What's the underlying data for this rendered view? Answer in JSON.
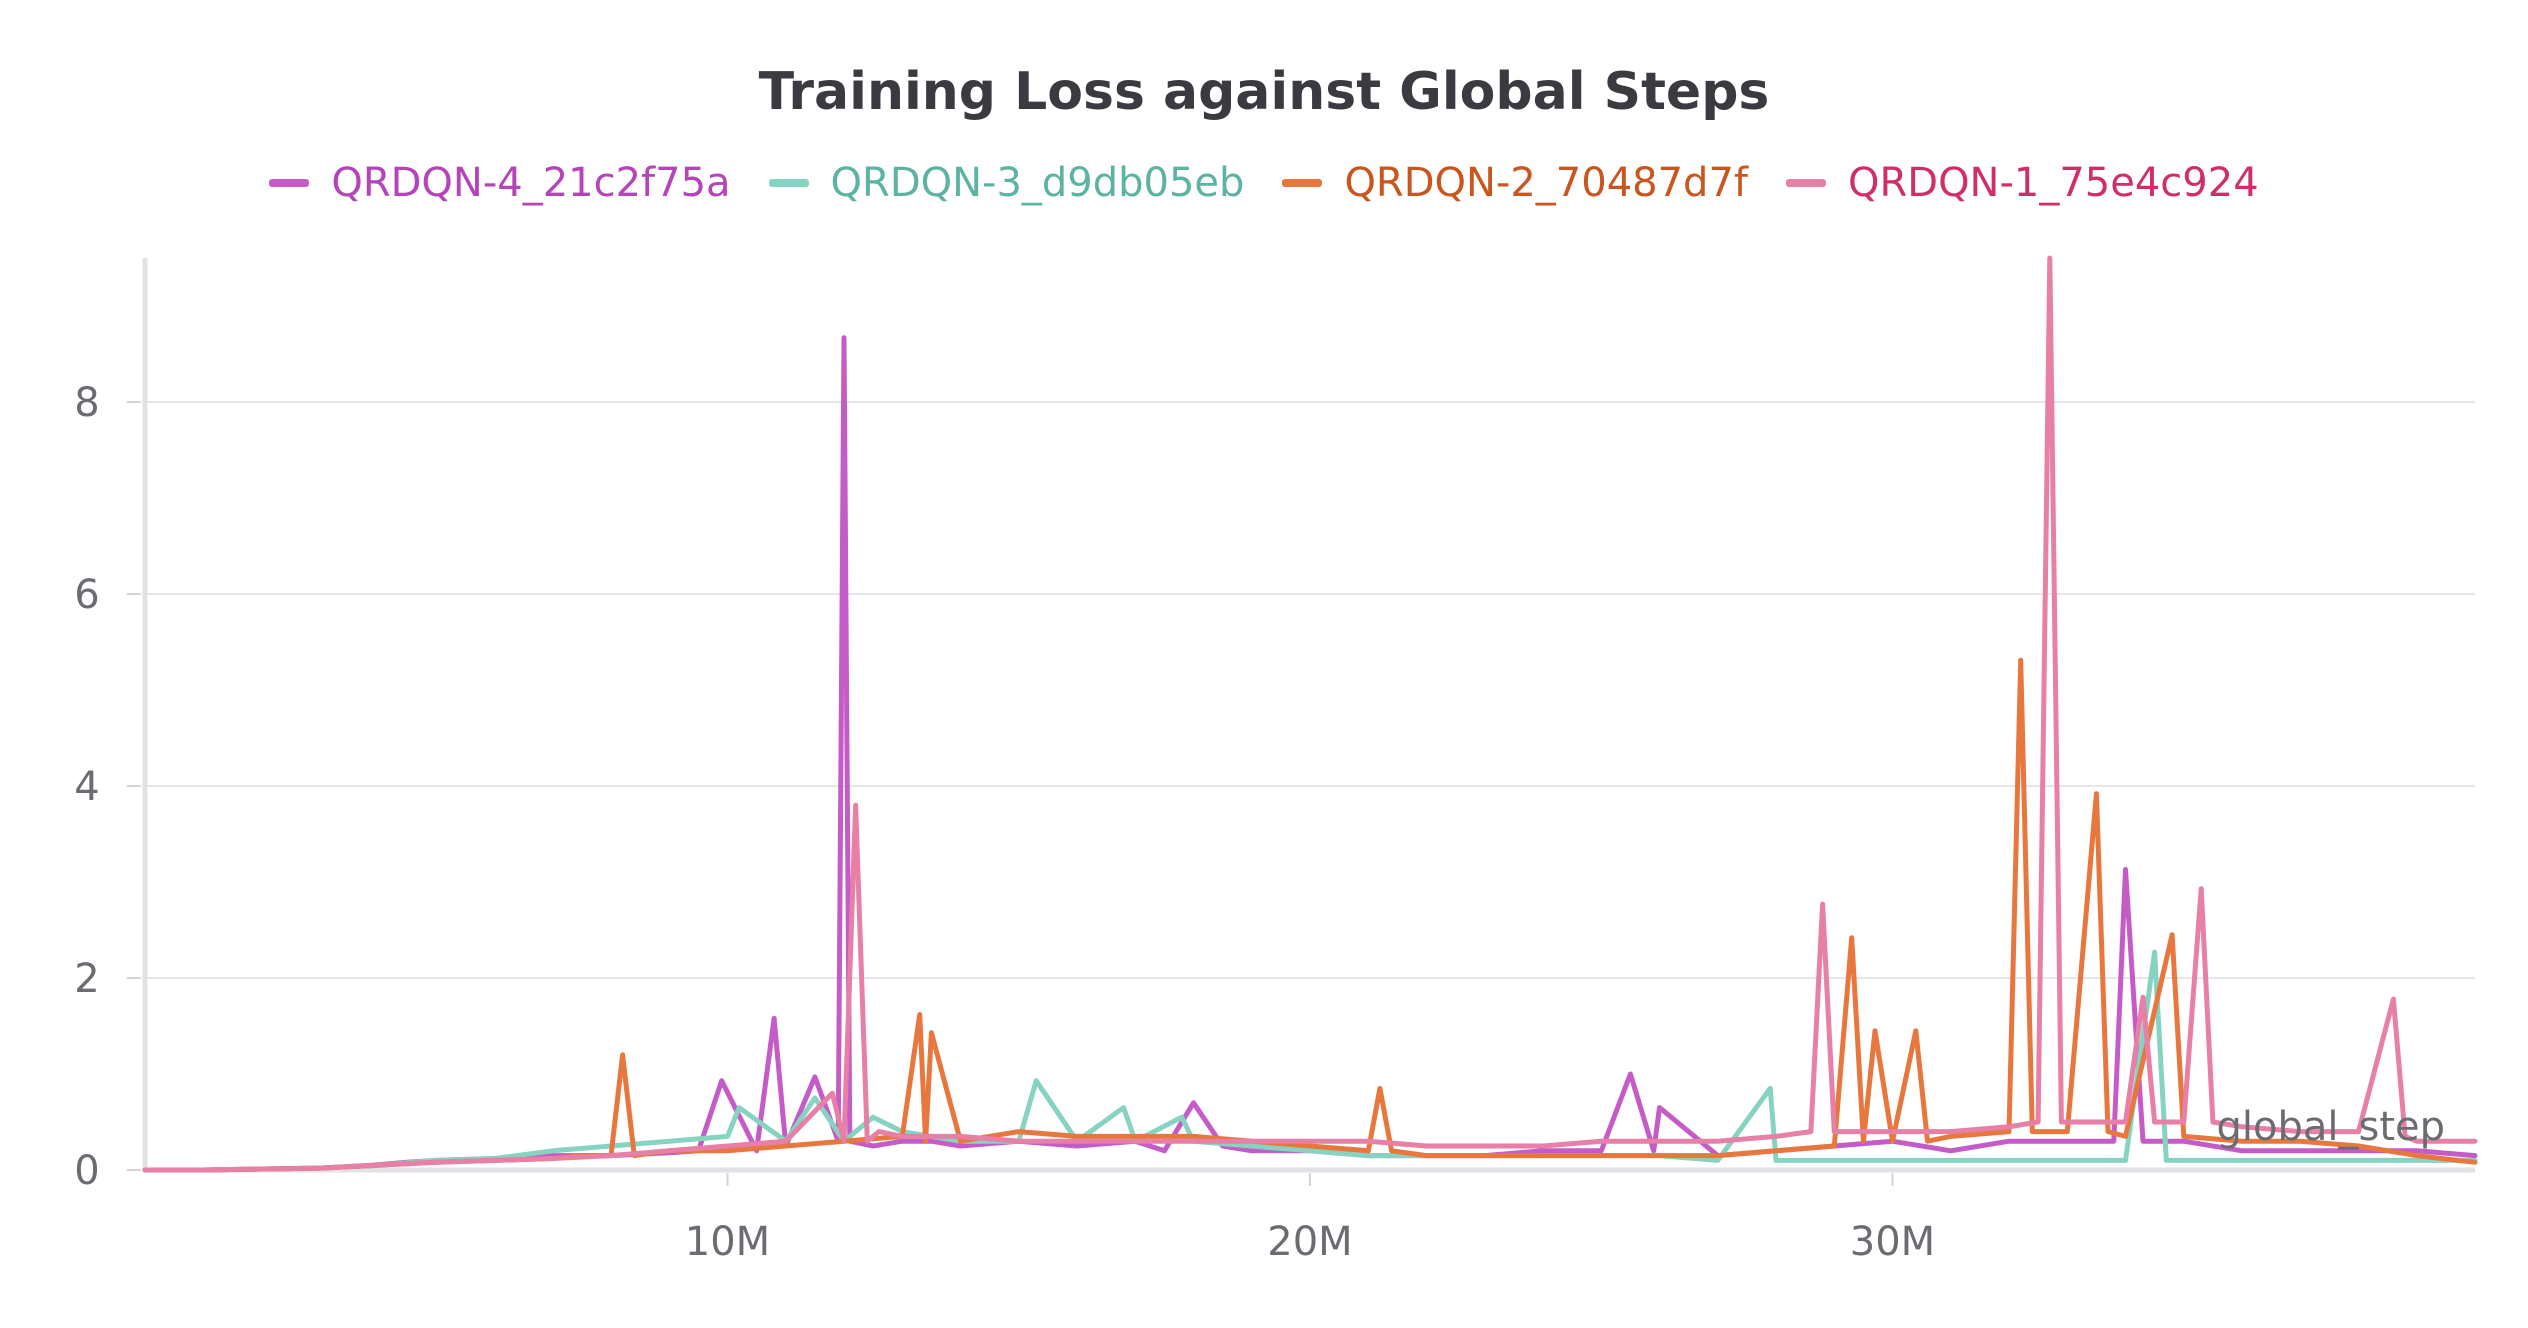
{
  "chart_data": {
    "type": "line",
    "title": "Training Loss against Global Steps",
    "xlabel": "global_step",
    "ylabel": "",
    "xlim": [
      0,
      40000000
    ],
    "ylim": [
      0,
      9.5
    ],
    "x_ticks": [
      {
        "value": 10000000,
        "label": "10M"
      },
      {
        "value": 20000000,
        "label": "20M"
      },
      {
        "value": 30000000,
        "label": "30M"
      }
    ],
    "y_ticks": [
      {
        "value": 0,
        "label": "0"
      },
      {
        "value": 2,
        "label": "2"
      },
      {
        "value": 4,
        "label": "4"
      },
      {
        "value": 6,
        "label": "6"
      },
      {
        "value": 8,
        "label": "8"
      }
    ],
    "grid": true,
    "legend_position": "top-center",
    "series": [
      {
        "name": "QRDQN-4_21c2f75a",
        "color": "#c45bc7",
        "text_color": "#b544b8",
        "x": [
          0,
          1000000,
          2000000,
          3000000,
          3900000,
          4500000,
          5000000,
          6000000,
          7000000,
          8000000,
          9000000,
          9500000,
          9900000,
          10500000,
          10800000,
          11000000,
          11500000,
          11900000,
          12000000,
          12100000,
          12500000,
          13000000,
          13500000,
          14000000,
          15000000,
          16000000,
          17000000,
          17500000,
          18000000,
          18500000,
          19000000,
          20000000,
          21000000,
          22000000,
          23000000,
          24000000,
          25000000,
          25500000,
          25900000,
          26000000,
          27000000,
          28000000,
          29000000,
          30000000,
          31000000,
          32000000,
          33000000,
          33800000,
          34000000,
          34300000,
          35000000,
          36000000,
          37000000,
          38000000,
          39000000,
          40000000
        ],
        "y": [
          0,
          0,
          0.01,
          0.02,
          0.05,
          0.08,
          0.1,
          0.12,
          0.15,
          0.15,
          0.18,
          0.2,
          0.93,
          0.2,
          1.58,
          0.25,
          0.97,
          0.3,
          8.67,
          0.3,
          0.25,
          0.3,
          0.3,
          0.25,
          0.3,
          0.25,
          0.3,
          0.2,
          0.7,
          0.25,
          0.2,
          0.2,
          0.15,
          0.15,
          0.15,
          0.2,
          0.2,
          1.0,
          0.2,
          0.65,
          0.15,
          0.2,
          0.25,
          0.3,
          0.2,
          0.3,
          0.3,
          0.3,
          3.13,
          0.3,
          0.3,
          0.2,
          0.2,
          0.2,
          0.2,
          0.15
        ]
      },
      {
        "name": "QRDQN-3_d9db05eb",
        "color": "#87d3c2",
        "text_color": "#5cb3a2",
        "x": [
          0,
          1000000,
          2000000,
          3000000,
          4000000,
          5000000,
          6000000,
          7000000,
          8000000,
          9000000,
          10000000,
          10200000,
          11000000,
          11500000,
          12000000,
          12500000,
          13000000,
          14000000,
          15000000,
          15300000,
          16000000,
          16800000,
          17000000,
          17800000,
          18000000,
          19000000,
          20000000,
          21000000,
          22000000,
          23000000,
          24000000,
          25000000,
          26000000,
          27000000,
          27900000,
          28000000,
          29000000,
          30000000,
          31000000,
          32000000,
          33000000,
          34000000,
          34500000,
          34700000,
          35000000,
          36000000,
          37000000,
          38000000,
          39000000,
          40000000
        ],
        "y": [
          0,
          0,
          0.01,
          0.02,
          0.05,
          0.1,
          0.12,
          0.2,
          0.25,
          0.3,
          0.35,
          0.65,
          0.3,
          0.75,
          0.3,
          0.55,
          0.4,
          0.3,
          0.3,
          0.93,
          0.3,
          0.65,
          0.3,
          0.55,
          0.3,
          0.25,
          0.2,
          0.15,
          0.15,
          0.15,
          0.15,
          0.15,
          0.15,
          0.1,
          0.85,
          0.1,
          0.1,
          0.1,
          0.1,
          0.1,
          0.1,
          0.1,
          2.27,
          0.1,
          0.1,
          0.1,
          0.1,
          0.1,
          0.1,
          0.1
        ]
      },
      {
        "name": "QRDQN-2_70487d7f",
        "color": "#e8773e",
        "text_color": "#c9561e",
        "x": [
          0,
          1000000,
          2000000,
          3000000,
          4000000,
          5000000,
          6000000,
          7000000,
          7500000,
          8000000,
          8200000,
          8400000,
          9000000,
          10000000,
          11000000,
          12000000,
          13000000,
          13300000,
          13400000,
          13500000,
          14000000,
          15000000,
          16000000,
          17000000,
          18000000,
          19000000,
          20000000,
          21000000,
          21200000,
          21400000,
          22000000,
          23000000,
          24000000,
          25000000,
          26000000,
          27000000,
          28000000,
          29000000,
          29300000,
          29500000,
          29700000,
          30000000,
          30400000,
          30600000,
          31000000,
          32000000,
          32200000,
          32400000,
          33000000,
          33500000,
          33700000,
          34000000,
          34800000,
          35000000,
          36000000,
          37000000,
          38000000,
          39000000,
          40000000
        ],
        "y": [
          0,
          0,
          0.01,
          0.02,
          0.05,
          0.08,
          0.1,
          0.12,
          0.15,
          0.15,
          1.2,
          0.15,
          0.2,
          0.2,
          0.25,
          0.3,
          0.35,
          1.62,
          0.3,
          1.43,
          0.3,
          0.4,
          0.35,
          0.35,
          0.35,
          0.3,
          0.25,
          0.2,
          0.85,
          0.2,
          0.15,
          0.15,
          0.15,
          0.15,
          0.15,
          0.15,
          0.2,
          0.25,
          2.42,
          0.3,
          1.45,
          0.3,
          1.45,
          0.3,
          0.35,
          0.4,
          5.31,
          0.4,
          0.4,
          3.92,
          0.4,
          0.35,
          2.45,
          0.35,
          0.3,
          0.3,
          0.25,
          0.15,
          0.08
        ]
      },
      {
        "name": "QRDQN-1_75e4c924",
        "color": "#e77fa6",
        "text_color": "#cf2e6a",
        "x": [
          0,
          1000000,
          2000000,
          3000000,
          4000000,
          5000000,
          6000000,
          7000000,
          8000000,
          9000000,
          10000000,
          11000000,
          11800000,
          12000000,
          12200000,
          12400000,
          12600000,
          13000000,
          14000000,
          15000000,
          16000000,
          17000000,
          18000000,
          19000000,
          20000000,
          21000000,
          22000000,
          23000000,
          24000000,
          25000000,
          26000000,
          27000000,
          28000000,
          28600000,
          28800000,
          29000000,
          30000000,
          31000000,
          32000000,
          32500000,
          32700000,
          32900000,
          33000000,
          34000000,
          34300000,
          34500000,
          35000000,
          35300000,
          35500000,
          36000000,
          37000000,
          38000000,
          38600000,
          38800000,
          39000000,
          40000000
        ],
        "y": [
          0,
          0,
          0.01,
          0.02,
          0.05,
          0.08,
          0.1,
          0.12,
          0.15,
          0.2,
          0.25,
          0.3,
          0.8,
          0.3,
          3.8,
          0.3,
          0.4,
          0.35,
          0.35,
          0.3,
          0.3,
          0.3,
          0.3,
          0.3,
          0.3,
          0.3,
          0.25,
          0.25,
          0.25,
          0.3,
          0.3,
          0.3,
          0.35,
          0.4,
          2.77,
          0.4,
          0.4,
          0.4,
          0.45,
          0.5,
          9.5,
          0.5,
          0.5,
          0.5,
          1.8,
          0.5,
          0.5,
          2.93,
          0.5,
          0.45,
          0.4,
          0.4,
          1.78,
          0.35,
          0.3,
          0.3
        ]
      }
    ]
  }
}
